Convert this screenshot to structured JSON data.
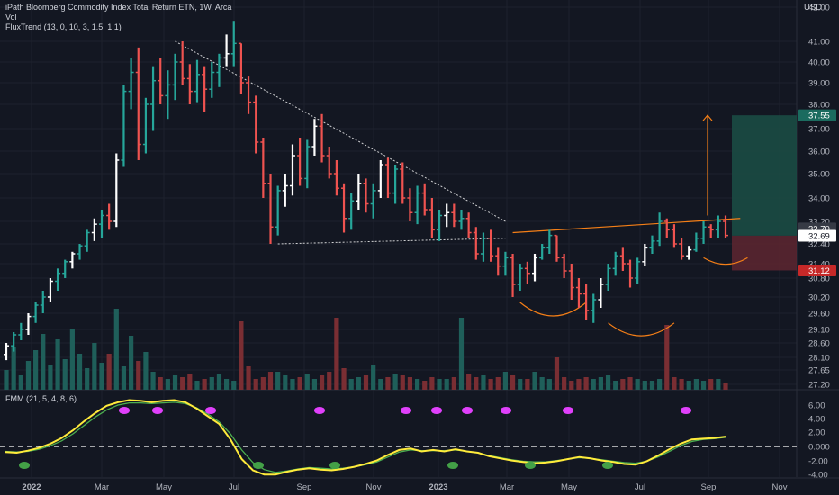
{
  "header": {
    "title": "iPath Bloomberg Commodity Index Total Return ETN, 1W, Arca",
    "vol_label": "Vol",
    "fluxtrend_label": "FluxTrend (13, 0, 10, 3, 1.5, 1.1)",
    "currency": "USD"
  },
  "lower_pane": {
    "label": "FMM (21, 5, 4, 8, 6)"
  },
  "colors": {
    "background": "#131722",
    "up": "#26a69a",
    "down": "#ef5350",
    "neutral": "#ffffff",
    "pattern": "#f57f17",
    "volume_up": "#1f5f5a",
    "volume_down": "#7a2e33",
    "fmm_fast": "#ffeb3b",
    "fmm_slow": "#4caf50",
    "dot_magenta": "#e040fb",
    "dot_green": "#43a047"
  },
  "chart_data": [
    {
      "type": "candlestick",
      "title": "iPath Bloomberg Commodity Index Total Return ETN, 1W, Arca",
      "x_labels": [
        "2022",
        "Mar",
        "May",
        "Jul",
        "Sep",
        "Nov",
        "2023",
        "Mar",
        "May",
        "Jul",
        "Sep",
        "Nov"
      ],
      "y_ticks": [
        "42.00",
        "41.00",
        "40.00",
        "39.00",
        "38.00",
        "37.00",
        "36.00",
        "35.00",
        "34.00",
        "33.20",
        "32.40",
        "31.40",
        "30.80",
        "30.20",
        "29.60",
        "29.10",
        "28.60",
        "28.10",
        "27.65",
        "27.20"
      ],
      "ylim": [
        27.2,
        42.0
      ],
      "ohlc": [
        [
          28.2,
          28.6,
          28.0,
          28.5
        ],
        [
          28.5,
          29.0,
          28.3,
          28.9
        ],
        [
          28.9,
          29.3,
          28.7,
          29.1
        ],
        [
          29.1,
          29.6,
          28.9,
          29.5
        ],
        [
          29.5,
          30.0,
          29.3,
          29.9
        ],
        [
          29.9,
          30.4,
          29.6,
          30.2
        ],
        [
          30.2,
          30.8,
          30.0,
          30.7
        ],
        [
          30.7,
          31.2,
          30.4,
          31.0
        ],
        [
          31.0,
          31.6,
          30.8,
          31.5
        ],
        [
          31.5,
          32.0,
          31.2,
          31.9
        ],
        [
          31.9,
          32.4,
          31.6,
          32.3
        ],
        [
          32.3,
          32.9,
          32.0,
          32.8
        ],
        [
          32.8,
          33.3,
          32.5,
          33.1
        ],
        [
          33.1,
          33.6,
          32.6,
          33.4
        ],
        [
          33.4,
          33.8,
          32.9,
          33.2
        ],
        [
          33.2,
          35.9,
          33.0,
          35.6
        ],
        [
          35.6,
          38.9,
          35.3,
          38.6
        ],
        [
          38.6,
          40.2,
          37.8,
          39.5
        ],
        [
          39.5,
          40.7,
          35.6,
          36.3
        ],
        [
          36.3,
          38.3,
          35.9,
          38.0
        ],
        [
          38.0,
          39.8,
          36.9,
          39.1
        ],
        [
          39.1,
          40.2,
          38.0,
          38.4
        ],
        [
          38.4,
          39.6,
          37.4,
          38.9
        ],
        [
          38.9,
          40.4,
          38.2,
          40.0
        ],
        [
          40.0,
          41.0,
          38.9,
          39.2
        ],
        [
          39.2,
          39.9,
          38.0,
          38.6
        ],
        [
          38.6,
          40.1,
          38.1,
          39.4
        ],
        [
          39.4,
          39.8,
          37.7,
          38.7
        ],
        [
          38.7,
          40.0,
          38.3,
          39.5
        ],
        [
          39.5,
          40.4,
          38.8,
          40.2
        ],
        [
          40.2,
          41.2,
          39.8,
          40.4
        ],
        [
          40.4,
          41.6,
          39.8,
          40.9
        ],
        [
          40.9,
          40.9,
          38.5,
          39.0
        ],
        [
          39.0,
          39.3,
          37.6,
          38.1
        ],
        [
          38.1,
          38.4,
          35.9,
          36.4
        ],
        [
          36.4,
          36.6,
          34.0,
          34.6
        ],
        [
          34.6,
          35.0,
          32.4,
          33.0
        ],
        [
          33.0,
          34.5,
          32.7,
          34.3
        ],
        [
          34.3,
          35.0,
          33.7,
          34.5
        ],
        [
          34.5,
          36.3,
          34.1,
          35.8
        ],
        [
          35.8,
          36.6,
          34.5,
          34.8
        ],
        [
          34.8,
          36.5,
          34.4,
          36.2
        ],
        [
          36.2,
          37.4,
          35.8,
          37.1
        ],
        [
          37.1,
          37.6,
          35.5,
          35.8
        ],
        [
          35.8,
          36.2,
          34.8,
          35.0
        ],
        [
          35.0,
          35.6,
          34.1,
          34.4
        ],
        [
          34.4,
          34.6,
          32.8,
          33.3
        ],
        [
          33.3,
          34.2,
          32.9,
          33.9
        ],
        [
          33.9,
          35.0,
          33.6,
          34.6
        ],
        [
          34.6,
          34.8,
          33.5,
          33.8
        ],
        [
          33.8,
          34.6,
          33.3,
          34.3
        ],
        [
          34.3,
          35.6,
          34.0,
          35.4
        ],
        [
          35.4,
          35.7,
          34.0,
          34.2
        ],
        [
          34.2,
          35.4,
          33.8,
          35.2
        ],
        [
          35.2,
          35.5,
          33.8,
          34.0
        ],
        [
          34.0,
          34.4,
          33.2,
          33.5
        ],
        [
          33.5,
          34.5,
          33.1,
          34.2
        ],
        [
          34.2,
          34.6,
          33.4,
          33.6
        ],
        [
          33.6,
          34.0,
          32.6,
          32.9
        ],
        [
          32.9,
          33.6,
          32.5,
          33.4
        ],
        [
          33.4,
          33.8,
          33.0,
          33.5
        ],
        [
          33.5,
          33.8,
          33.0,
          33.2
        ],
        [
          33.2,
          33.6,
          32.9,
          33.3
        ],
        [
          33.3,
          33.5,
          32.6,
          32.8
        ],
        [
          32.8,
          33.0,
          31.6,
          31.9
        ],
        [
          31.9,
          32.8,
          31.5,
          32.6
        ],
        [
          32.6,
          32.9,
          31.5,
          31.8
        ],
        [
          31.8,
          32.2,
          30.9,
          31.3
        ],
        [
          31.3,
          32.0,
          30.9,
          31.7
        ],
        [
          31.7,
          31.9,
          30.2,
          30.6
        ],
        [
          30.6,
          31.4,
          30.4,
          31.2
        ],
        [
          31.2,
          31.5,
          30.6,
          31.0
        ],
        [
          31.0,
          31.9,
          30.7,
          31.7
        ],
        [
          31.7,
          32.4,
          31.6,
          32.2
        ],
        [
          32.2,
          32.9,
          31.9,
          32.7
        ],
        [
          32.7,
          32.7,
          31.5,
          31.7
        ],
        [
          31.7,
          31.9,
          30.8,
          31.1
        ],
        [
          31.1,
          31.4,
          30.1,
          30.5
        ],
        [
          30.5,
          30.8,
          29.8,
          30.3
        ],
        [
          30.3,
          30.6,
          29.4,
          29.7
        ],
        [
          29.7,
          30.3,
          29.3,
          30.1
        ],
        [
          30.1,
          30.8,
          29.8,
          30.6
        ],
        [
          30.6,
          31.4,
          30.4,
          31.2
        ],
        [
          31.2,
          32.0,
          30.9,
          31.8
        ],
        [
          31.8,
          32.2,
          31.1,
          31.4
        ],
        [
          31.4,
          31.6,
          30.5,
          30.8
        ],
        [
          30.8,
          31.7,
          30.6,
          31.5
        ],
        [
          31.5,
          32.4,
          31.3,
          32.2
        ],
        [
          32.2,
          32.7,
          31.9,
          32.5
        ],
        [
          32.5,
          33.5,
          32.3,
          33.2
        ],
        [
          33.2,
          33.3,
          32.6,
          32.9
        ],
        [
          32.9,
          33.1,
          32.2,
          32.4
        ],
        [
          32.4,
          32.6,
          31.6,
          31.8
        ],
        [
          31.8,
          32.3,
          31.6,
          32.1
        ],
        [
          32.1,
          32.8,
          32.0,
          32.6
        ],
        [
          32.6,
          33.2,
          32.4,
          33.0
        ],
        [
          33.0,
          33.1,
          32.6,
          32.9
        ],
        [
          32.9,
          33.4,
          32.6,
          33.2
        ],
        [
          33.2,
          33.4,
          32.6,
          32.7
        ]
      ],
      "volume": [
        1.1,
        2.4,
        0.8,
        1.6,
        2.2,
        3.1,
        1.4,
        2.8,
        1.7,
        3.4,
        2.0,
        1.2,
        2.6,
        1.5,
        2.0,
        4.5,
        1.3,
        3.0,
        1.6,
        2.1,
        1.0,
        0.7,
        0.6,
        0.8,
        0.7,
        0.9,
        0.5,
        0.6,
        0.7,
        0.9,
        0.6,
        0.5,
        3.8,
        1.3,
        0.6,
        0.7,
        1.0,
        1.0,
        0.8,
        0.6,
        0.7,
        0.9,
        0.6,
        0.8,
        1.0,
        4.0,
        1.2,
        0.6,
        0.7,
        0.8,
        1.4,
        0.6,
        0.7,
        0.9,
        0.8,
        0.7,
        0.6,
        0.5,
        0.7,
        0.6,
        0.6,
        0.7,
        4.0,
        0.9,
        0.7,
        0.8,
        0.6,
        0.7,
        1.0,
        0.8,
        0.6,
        0.6,
        1.0,
        0.7,
        0.6,
        1.8,
        0.7,
        0.5,
        0.6,
        0.7,
        0.6,
        0.7,
        0.8,
        0.5,
        0.6,
        0.7,
        0.6,
        0.5,
        0.5,
        0.6,
        3.6,
        0.7,
        0.6,
        0.5,
        0.6,
        0.5,
        0.6,
        0.6,
        0.4
      ],
      "price_labels": {
        "current": "32.69",
        "target": "37.55",
        "stop": "31.12",
        "neckline": "32.70"
      }
    },
    {
      "type": "line",
      "title": "FMM (21, 5, 4, 8, 6)",
      "y_ticks": [
        "6.00",
        "4.00",
        "2.00",
        "0.000",
        "-2.00",
        "-4.00"
      ],
      "ylim": [
        -5.0,
        7.0
      ],
      "series": [
        {
          "values": [
            -0.8,
            -0.9,
            -0.6,
            -0.2,
            0.4,
            1.2,
            2.3,
            3.6,
            4.8,
            5.8,
            6.3,
            6.6,
            6.5,
            6.3,
            6.5,
            6.6,
            6.3,
            5.4,
            4.3,
            3.2,
            1.0,
            -1.8,
            -3.4,
            -4.0,
            -4.0,
            -3.6,
            -3.3,
            -3.1,
            -3.3,
            -3.4,
            -3.2,
            -2.9,
            -2.5,
            -2.0,
            -1.2,
            -0.5,
            -0.3,
            -0.7,
            -0.5,
            -0.7,
            -0.4,
            -0.7,
            -0.9,
            -1.4,
            -1.7,
            -2.0,
            -2.2,
            -2.4,
            -2.3,
            -2.1,
            -1.8,
            -1.5,
            -1.7,
            -2.0,
            -2.2,
            -2.5,
            -2.6,
            -2.1,
            -1.3,
            -0.4,
            0.4,
            1.0,
            1.1,
            1.2,
            1.4
          ]
        },
        {
          "values": [
            -0.7,
            -0.8,
            -0.7,
            -0.4,
            0.1,
            0.8,
            1.8,
            3.0,
            4.2,
            5.2,
            5.9,
            6.2,
            6.2,
            6.1,
            6.2,
            6.3,
            6.1,
            5.5,
            4.6,
            3.5,
            1.8,
            -0.5,
            -2.3,
            -3.3,
            -3.7,
            -3.5,
            -3.2,
            -3.0,
            -3.1,
            -3.2,
            -3.1,
            -2.9,
            -2.6,
            -2.2,
            -1.5,
            -0.8,
            -0.5,
            -0.6,
            -0.6,
            -0.6,
            -0.5,
            -0.7,
            -0.9,
            -1.3,
            -1.6,
            -1.9,
            -2.1,
            -2.2,
            -2.2,
            -2.0,
            -1.8,
            -1.6,
            -1.7,
            -1.9,
            -2.1,
            -2.3,
            -2.4,
            -2.1,
            -1.5,
            -0.7,
            0.1,
            0.7,
            1.0,
            1.1,
            1.3
          ]
        }
      ]
    }
  ]
}
